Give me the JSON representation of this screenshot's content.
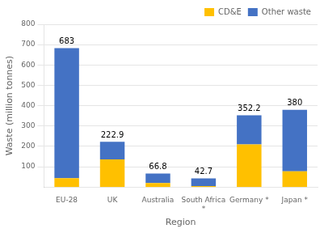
{
  "chart_data": {
    "type": "bar",
    "stacked": true,
    "categories": [
      "EU-28",
      "UK",
      "Australia",
      "South Africa\n*",
      "Germany *",
      "Japan *"
    ],
    "series": [
      {
        "name": "CD&E",
        "color": "#FFC000",
        "values": [
          44,
          136,
          20,
          5,
          210,
          77
        ]
      },
      {
        "name": "Other waste",
        "color": "#4472C4",
        "values": [
          639,
          86.9,
          46.8,
          37.7,
          142.2,
          303
        ]
      }
    ],
    "totals": [
      683,
      222.9,
      66.8,
      42.7,
      352.2,
      380
    ],
    "xlabel": "Region",
    "ylabel": "Waste (million tonnes)",
    "ylim": [
      0,
      800
    ],
    "yticks": [
      100,
      200,
      300,
      400,
      500,
      600,
      700,
      800
    ],
    "grid": true,
    "legend": "upper right"
  }
}
